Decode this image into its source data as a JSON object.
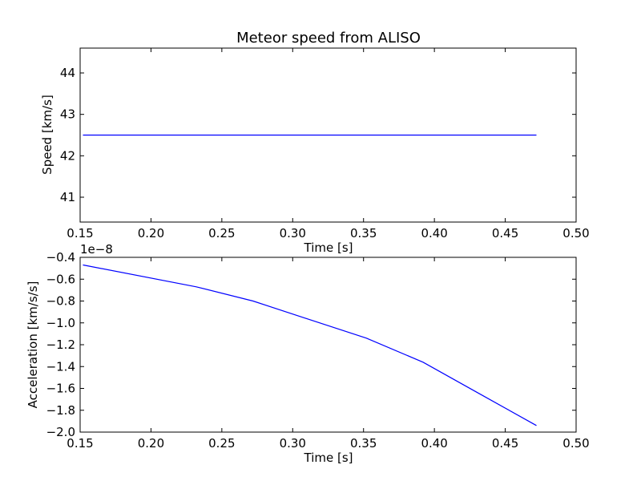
{
  "chart_data": [
    {
      "type": "line",
      "title": "Meteor speed from  ALISO",
      "xlabel": "Time [s]",
      "ylabel": "Speed [km/s]",
      "xlim": [
        0.15,
        0.5
      ],
      "ylim": [
        40.4,
        44.6
      ],
      "xticks": [
        0.15,
        0.2,
        0.25,
        0.3,
        0.35,
        0.4,
        0.45,
        0.5
      ],
      "xtick_labels": [
        "0.15",
        "0.20",
        "0.25",
        "0.30",
        "0.35",
        "0.40",
        "0.45",
        "0.50"
      ],
      "yticks": [
        41,
        42,
        43,
        44
      ],
      "ytick_labels": [
        "41",
        "42",
        "43",
        "44"
      ],
      "series": [
        {
          "x": [
            0.152,
            0.472
          ],
          "y": [
            42.5,
            42.5
          ]
        }
      ],
      "line_color": "#0000ff",
      "grid": false
    },
    {
      "type": "line",
      "title": "",
      "xlabel": "Time [s]",
      "ylabel": "Acceleration [km/s/s]",
      "offset_label": "1e−8",
      "xlim": [
        0.15,
        0.5
      ],
      "ylim": [
        -2.0,
        -0.4
      ],
      "xticks": [
        0.15,
        0.2,
        0.25,
        0.3,
        0.35,
        0.4,
        0.45,
        0.5
      ],
      "xtick_labels": [
        "0.15",
        "0.20",
        "0.25",
        "0.30",
        "0.35",
        "0.40",
        "0.45",
        "0.50"
      ],
      "yticks": [
        -0.4,
        -0.6,
        -0.8,
        -1.0,
        -1.2,
        -1.4,
        -1.6,
        -1.8,
        -2.0
      ],
      "ytick_labels": [
        "−0.4",
        "−0.6",
        "−0.8",
        "−1.0",
        "−1.2",
        "−1.4",
        "−1.6",
        "−1.8",
        "−2.0"
      ],
      "series": [
        {
          "x": [
            0.152,
            0.232,
            0.272,
            0.312,
            0.352,
            0.392,
            0.432,
            0.472
          ],
          "y": [
            -0.47,
            -0.67,
            -0.8,
            -0.97,
            -1.14,
            -1.36,
            -1.65,
            -1.94
          ]
        }
      ],
      "line_color": "#0000ff",
      "grid": false
    }
  ]
}
